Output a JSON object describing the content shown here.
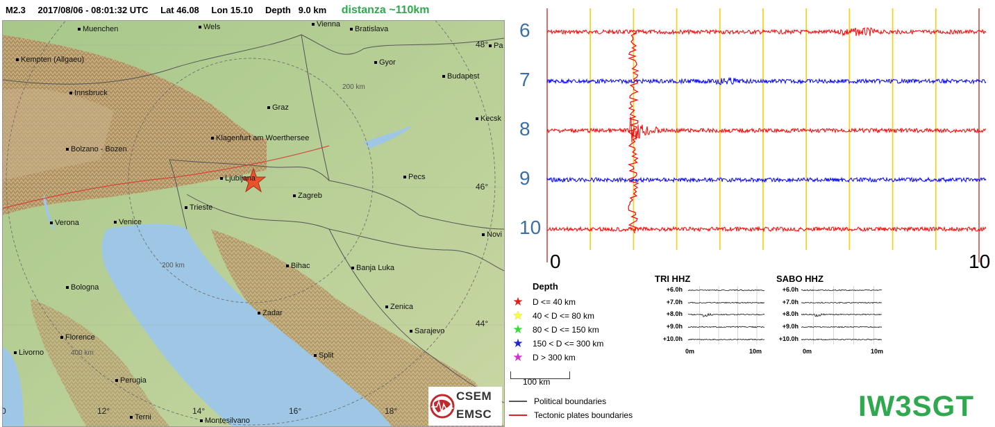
{
  "header": {
    "magnitude": "M2.3",
    "datetime": "2017/08/06 - 08:01:32 UTC",
    "lat": "Lat 46.08",
    "lon": "Lon 15.10",
    "depth": "Depth   9.0 km",
    "distance": "distanza ~110km"
  },
  "map": {
    "cities": [
      {
        "name": "Muenchen"
      },
      {
        "name": "Wels"
      },
      {
        "name": "Vienna"
      },
      {
        "name": "Bratislava"
      },
      {
        "name": "Kempten (Allgaeu)"
      },
      {
        "name": "Gyor"
      },
      {
        "name": "Budapest"
      },
      {
        "name": "Innsbruck"
      },
      {
        "name": "Graz"
      },
      {
        "name": "Kecsk"
      },
      {
        "name": "Klagenfurt am Woerthersee"
      },
      {
        "name": "Bolzano - Bozen"
      },
      {
        "name": "Ljubljana"
      },
      {
        "name": "Pecs"
      },
      {
        "name": "Trieste"
      },
      {
        "name": "Zagreb"
      },
      {
        "name": "Verona"
      },
      {
        "name": "Venice"
      },
      {
        "name": "Novi"
      },
      {
        "name": "Bihac"
      },
      {
        "name": "Banja Luka"
      },
      {
        "name": "Bologna"
      },
      {
        "name": "Zadar"
      },
      {
        "name": "Zenica"
      },
      {
        "name": "Sarajevo"
      },
      {
        "name": "Florence"
      },
      {
        "name": "Livorno"
      },
      {
        "name": "Split"
      },
      {
        "name": "Perugia"
      },
      {
        "name": "Terni"
      },
      {
        "name": "Montesilvano"
      },
      {
        "name": "Pa"
      }
    ],
    "lat_ticks": [
      "48°",
      "46°",
      "44°"
    ],
    "lon_ticks": [
      "12°",
      "14°",
      "16°",
      "18°",
      "0"
    ],
    "ring_labels": [
      "200 km",
      "200 km",
      "400 km"
    ],
    "epicenter": {
      "marker": "star-icon",
      "color": "#e8532b"
    }
  },
  "seismogram": {
    "traces": [
      {
        "label": "6",
        "color": "#ff0000"
      },
      {
        "label": "7",
        "color": "#0000ff"
      },
      {
        "label": "8",
        "color": "#ff0000"
      },
      {
        "label": "9",
        "color": "#0000ff"
      },
      {
        "label": "10",
        "color": "#ff0000"
      }
    ],
    "x_start": "0",
    "x_end": "10",
    "grid_color": "#f2d12a",
    "bound_color": "#c0392b"
  },
  "legend": {
    "title": "Depth",
    "items": [
      {
        "label": "D <= 40 km",
        "color": "#e02020"
      },
      {
        "label": "40 < D <= 80 km",
        "color": "#ffff33"
      },
      {
        "label": "80 < D <= 150 km",
        "color": "#33dd33"
      },
      {
        "label": "150 < D <= 300 km",
        "color": "#2222cc"
      },
      {
        "label": "D > 300 km",
        "color": "#cc33cc"
      }
    ],
    "scale": "100 km",
    "political": "Political boundaries",
    "tectonic": "Tectonic plates boundaries"
  },
  "stations": [
    {
      "name": "TRI HHZ",
      "hours": [
        "+6.0h",
        "+7.0h",
        "+8.0h",
        "+9.0h",
        "+10.0h"
      ],
      "x_start": "0m",
      "x_end": "10m"
    },
    {
      "name": "SABO HHZ",
      "hours": [
        "+6.0h",
        "+7.0h",
        "+8.0h",
        "+9.0h",
        "+10.0h"
      ],
      "x_start": "0m",
      "x_end": "10m"
    }
  ],
  "logo": {
    "line1": "CSEM",
    "line2": "EMSC"
  },
  "callsign": "IW3SGT"
}
